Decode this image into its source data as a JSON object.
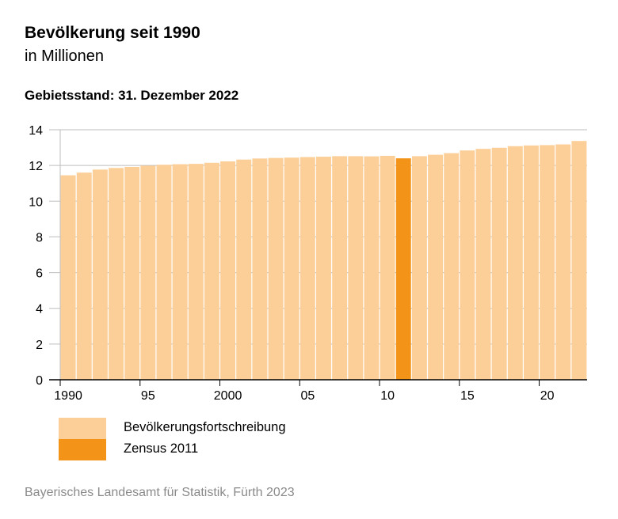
{
  "title": "Bevölkerung seit 1990",
  "subtitle": "in Millionen",
  "note": "Gebietsstand: 31. Dezember 2022",
  "source": "Bayerisches Landesamt für Statistik, Fürth 2023",
  "colors": {
    "fortschreibung": "#fccf98",
    "zensus": "#f39418",
    "grid": "#bdbdbd",
    "axis": "#000000"
  },
  "legend": [
    {
      "label": "Bevölkerungsfortschreibung",
      "color": "#fccf98"
    },
    {
      "label": "Zensus 2011",
      "color": "#f39418"
    }
  ],
  "chart_data": {
    "type": "bar",
    "title": "Bevölkerung seit 1990",
    "subtitle": "in Millionen",
    "ylim": [
      0,
      14
    ],
    "yticks": [
      0,
      2,
      4,
      6,
      8,
      10,
      12,
      14
    ],
    "xtick_labels": [
      {
        "year": 1990,
        "label": "1990"
      },
      {
        "year": 1995,
        "label": "95"
      },
      {
        "year": 2000,
        "label": "2000"
      },
      {
        "year": 2005,
        "label": "05"
      },
      {
        "year": 2010,
        "label": "10"
      },
      {
        "year": 2015,
        "label": "15"
      },
      {
        "year": 2020,
        "label": "20"
      }
    ],
    "grid": "horizontal",
    "legend_position": "bottom",
    "categories": [
      1990,
      1991,
      1992,
      1993,
      1994,
      1995,
      1996,
      1997,
      1998,
      1999,
      2000,
      2001,
      2002,
      2003,
      2004,
      2005,
      2006,
      2007,
      2008,
      2009,
      2010,
      2011,
      2012,
      2013,
      2014,
      2015,
      2016,
      2017,
      2018,
      2019,
      2020,
      2021,
      2022
    ],
    "series": [
      {
        "name": "Bevölkerungsfortschreibung",
        "color": "#fccf98",
        "values": [
          11.45,
          11.6,
          11.77,
          11.86,
          11.92,
          11.99,
          12.04,
          12.07,
          12.09,
          12.15,
          12.23,
          12.33,
          12.39,
          12.42,
          12.44,
          12.47,
          12.49,
          12.52,
          12.52,
          12.51,
          12.54,
          null,
          12.52,
          12.6,
          12.69,
          12.84,
          12.93,
          12.99,
          13.08,
          13.12,
          13.14,
          13.18,
          13.37
        ]
      },
      {
        "name": "Zensus 2011",
        "color": "#f39418",
        "values": [
          null,
          null,
          null,
          null,
          null,
          null,
          null,
          null,
          null,
          null,
          null,
          null,
          null,
          null,
          null,
          null,
          null,
          null,
          null,
          null,
          null,
          12.4,
          null,
          null,
          null,
          null,
          null,
          null,
          null,
          null,
          null,
          null,
          null
        ]
      }
    ]
  }
}
